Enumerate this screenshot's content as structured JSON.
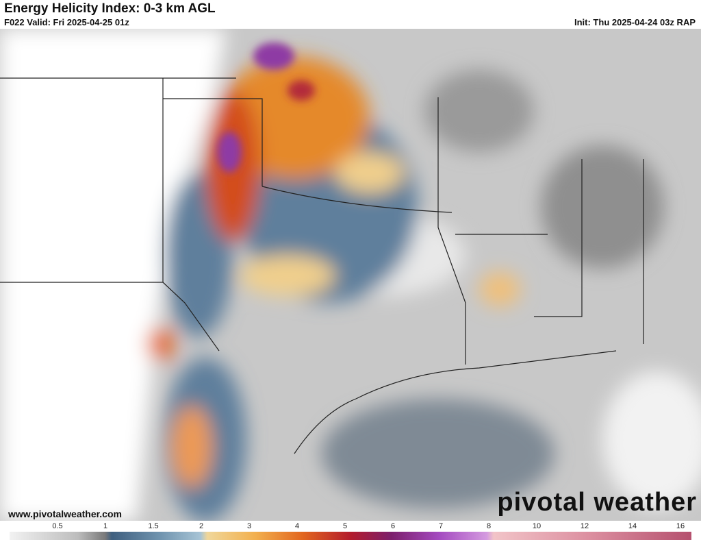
{
  "header": {
    "title": "Energy Helicity Index: 0-3 km AGL",
    "valid": "F022 Valid: Fri 2025-04-25 01z",
    "init": "Init: Thu 2025-04-24 03z RAP"
  },
  "map": {
    "website": "www.pivotalweather.com",
    "logo": "pivotal weather"
  },
  "colorbar": {
    "ticks": [
      0.5,
      1,
      1.5,
      2,
      3,
      4,
      5,
      6,
      7,
      8,
      10,
      12,
      14,
      16
    ]
  }
}
